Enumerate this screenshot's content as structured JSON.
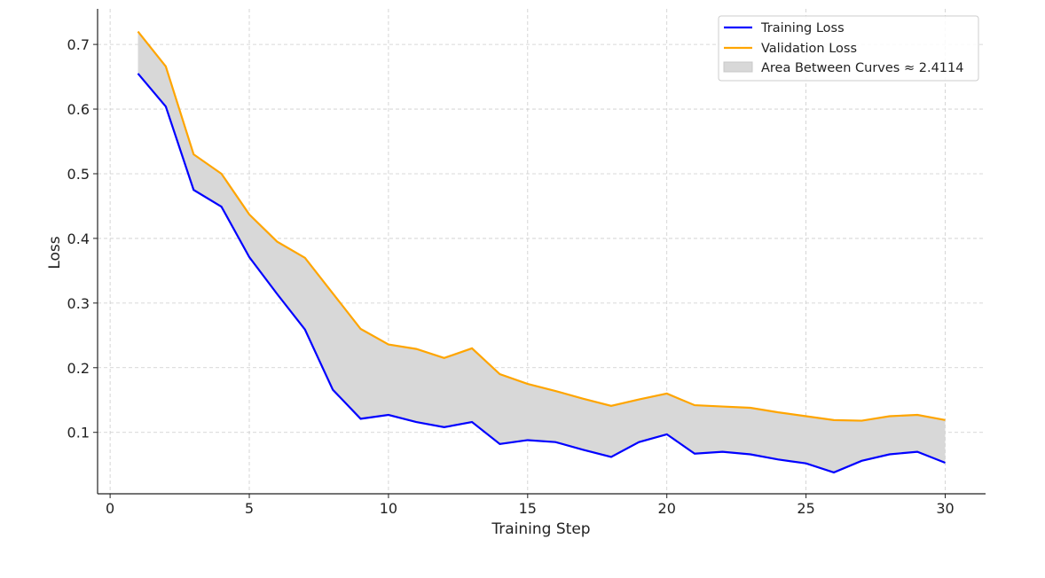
{
  "chart_data": {
    "type": "line",
    "title": "",
    "xlabel": "Training Step",
    "ylabel": "Loss",
    "xlim": [
      -0.45,
      31.45
    ],
    "ylim": [
      0.005,
      0.755
    ],
    "xticks": [
      0,
      5,
      10,
      15,
      20,
      25,
      30
    ],
    "xtick_labels": [
      "0",
      "5",
      "10",
      "15",
      "20",
      "25",
      "30"
    ],
    "yticks": [
      0.1,
      0.2,
      0.3,
      0.4,
      0.5,
      0.6,
      0.7
    ],
    "ytick_labels": [
      "0.1",
      "0.2",
      "0.3",
      "0.4",
      "0.5",
      "0.6",
      "0.7"
    ],
    "grid": true,
    "legend_position": "top-right",
    "x": [
      1,
      2,
      3,
      4,
      5,
      6,
      7,
      8,
      9,
      10,
      11,
      12,
      13,
      14,
      15,
      16,
      17,
      18,
      19,
      20,
      21,
      22,
      23,
      24,
      25,
      26,
      27,
      28,
      29,
      30
    ],
    "series": [
      {
        "name": "Training Loss",
        "color": "#0000ff",
        "values": [
          0.655,
          0.604,
          0.475,
          0.449,
          0.371,
          0.314,
          0.259,
          0.166,
          0.121,
          0.127,
          0.116,
          0.108,
          0.116,
          0.082,
          0.088,
          0.085,
          0.073,
          0.062,
          0.085,
          0.097,
          0.067,
          0.07,
          0.066,
          0.058,
          0.052,
          0.038,
          0.056,
          0.066,
          0.07,
          0.053
        ]
      },
      {
        "name": "Validation Loss",
        "color": "#ffa500",
        "values": [
          0.72,
          0.666,
          0.53,
          0.5,
          0.437,
          0.395,
          0.37,
          0.315,
          0.26,
          0.236,
          0.229,
          0.215,
          0.23,
          0.19,
          0.175,
          0.164,
          0.152,
          0.141,
          0.151,
          0.16,
          0.142,
          0.14,
          0.138,
          0.131,
          0.125,
          0.119,
          0.118,
          0.125,
          0.127,
          0.119
        ]
      }
    ],
    "fill_between": {
      "name": "Area Between Curves ≈ 2.4114",
      "color": "#d8d8d8"
    }
  }
}
